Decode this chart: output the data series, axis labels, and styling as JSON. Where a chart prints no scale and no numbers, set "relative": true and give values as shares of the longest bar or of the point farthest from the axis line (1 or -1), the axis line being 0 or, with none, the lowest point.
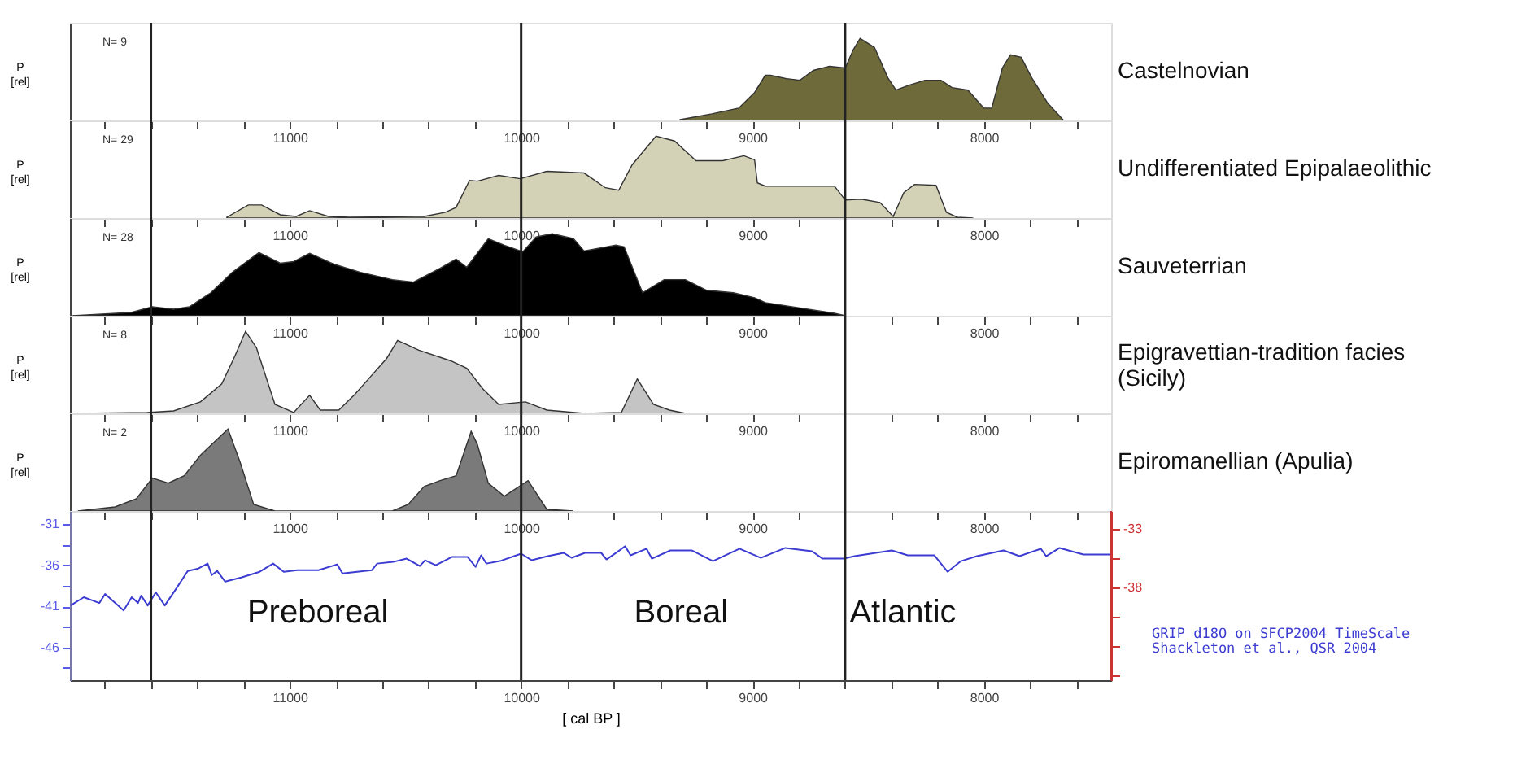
{
  "chart_data": [
    {
      "type": "area",
      "relative": true,
      "title": "Castelnovian",
      "ylabel": "P [rel]",
      "annotations": [
        "N= 9"
      ],
      "tick_labels": "x",
      "xlim": [
        11950,
        7450
      ],
      "xticks": [
        {
          "value": 11800,
          "label": null
        },
        {
          "value": 11600,
          "label": null
        },
        {
          "value": 11400,
          "label": null
        },
        {
          "value": 11200,
          "label": null
        },
        11000,
        {
          "value": 10800,
          "label": null
        },
        {
          "value": 10600,
          "label": null
        },
        {
          "value": 10400,
          "label": null
        },
        {
          "value": 10200,
          "label": null
        },
        10000,
        {
          "value": 9800,
          "label": null
        },
        {
          "value": 9600,
          "label": null
        },
        {
          "value": 9400,
          "label": null
        },
        {
          "value": 9200,
          "label": null
        },
        9000,
        {
          "value": 8800,
          "label": null
        },
        {
          "value": 8600,
          "label": null
        },
        {
          "value": 8400,
          "label": null
        },
        {
          "value": 8200,
          "label": null
        },
        8000,
        {
          "value": 7800,
          "label": null
        },
        {
          "value": 7600,
          "label": null
        }
      ],
      "ref_lines": [
        {
          "axis": "x",
          "value": 11600,
          "color": "#222222"
        },
        {
          "axis": "x",
          "value": 10000,
          "color": "#222222"
        },
        {
          "axis": "x",
          "value": 8600,
          "color": "#222222"
        }
      ],
      "x": [
        9313,
        9175,
        9060,
        8991,
        8945,
        8922,
        8853,
        8795,
        8737,
        8668,
        8599,
        8565,
        8535,
        8473,
        8415,
        8380,
        8323,
        8254,
        8185,
        8138,
        8069,
        8000,
        7966,
        7920,
        7885,
        7839,
        7793,
        7724,
        7655
      ],
      "series": [
        {
          "color": "#6e6a3a",
          "values": [
            0.01,
            0.08,
            0.15,
            0.34,
            0.55,
            0.55,
            0.51,
            0.49,
            0.61,
            0.66,
            0.64,
            0.86,
            1.0,
            0.89,
            0.52,
            0.37,
            0.43,
            0.49,
            0.49,
            0.4,
            0.37,
            0.15,
            0.15,
            0.64,
            0.8,
            0.77,
            0.52,
            0.21,
            0
          ]
        }
      ]
    },
    {
      "type": "area",
      "relative": true,
      "title": "Undifferentiated Epipalaeolithic",
      "ylabel": "P [rel]",
      "annotations": [
        "N= 29"
      ],
      "tick_labels": "x",
      "xlim": [
        11950,
        7450
      ],
      "xticks": [
        {
          "value": 11800,
          "label": null
        },
        {
          "value": 11600,
          "label": null
        },
        {
          "value": 11400,
          "label": null
        },
        {
          "value": 11200,
          "label": null
        },
        11000,
        {
          "value": 10800,
          "label": null
        },
        {
          "value": 10600,
          "label": null
        },
        {
          "value": 10400,
          "label": null
        },
        {
          "value": 10200,
          "label": null
        },
        10000,
        {
          "value": 9800,
          "label": null
        },
        {
          "value": 9600,
          "label": null
        },
        {
          "value": 9400,
          "label": null
        },
        {
          "value": 9200,
          "label": null
        },
        9000,
        {
          "value": 8800,
          "label": null
        },
        {
          "value": 8600,
          "label": null
        },
        {
          "value": 8400,
          "label": null
        },
        {
          "value": 8200,
          "label": null
        },
        8000,
        {
          "value": 7800,
          "label": null
        },
        {
          "value": 7600,
          "label": null
        }
      ],
      "ref_lines": [
        {
          "axis": "x",
          "value": 11600,
          "color": "#222222"
        },
        {
          "axis": "x",
          "value": 10000,
          "color": "#222222"
        },
        {
          "axis": "x",
          "value": 8600,
          "color": "#222222"
        }
      ],
      "x": [
        11272,
        11179,
        11122,
        11041,
        10972,
        10914,
        10833,
        10742,
        10419,
        10327,
        10281,
        10223,
        10189,
        10097,
        10004,
        9889,
        9728,
        9636,
        9578,
        9520,
        9417,
        9337,
        9244,
        9129,
        9037,
        8991,
        8979,
        8945,
        8784,
        8646,
        8599,
        8530,
        8449,
        8392,
        8346,
        8300,
        8207,
        8162,
        8115,
        8046
      ],
      "series": [
        {
          "color": "#d3d1b6",
          "values": [
            0.01,
            0.16,
            0.16,
            0.04,
            0.02,
            0.09,
            0.02,
            0.01,
            0.02,
            0.07,
            0.13,
            0.46,
            0.45,
            0.52,
            0.48,
            0.57,
            0.55,
            0.37,
            0.34,
            0.65,
            1.0,
            0.94,
            0.7,
            0.7,
            0.76,
            0.71,
            0.43,
            0.39,
            0.39,
            0.39,
            0.22,
            0.23,
            0.19,
            0.02,
            0.31,
            0.41,
            0.4,
            0.07,
            0.01,
            0
          ]
        }
      ]
    },
    {
      "type": "area",
      "relative": true,
      "title": "Sauveterrian",
      "ylabel": "P [rel]",
      "annotations": [
        "N= 28"
      ],
      "tick_labels": "x",
      "xlim": [
        11950,
        7450
      ],
      "xticks": [
        {
          "value": 11800,
          "label": null
        },
        {
          "value": 11600,
          "label": null
        },
        {
          "value": 11400,
          "label": null
        },
        {
          "value": 11200,
          "label": null
        },
        11000,
        {
          "value": 10800,
          "label": null
        },
        {
          "value": 10600,
          "label": null
        },
        {
          "value": 10400,
          "label": null
        },
        {
          "value": 10200,
          "label": null
        },
        10000,
        {
          "value": 9800,
          "label": null
        },
        {
          "value": 9600,
          "label": null
        },
        {
          "value": 9400,
          "label": null
        },
        {
          "value": 9200,
          "label": null
        },
        9000,
        {
          "value": 8800,
          "label": null
        },
        {
          "value": 8600,
          "label": null
        },
        {
          "value": 8400,
          "label": null
        },
        {
          "value": 8200,
          "label": null
        },
        8000,
        {
          "value": 7800,
          "label": null
        },
        {
          "value": 7600,
          "label": null
        }
      ],
      "ref_lines": [
        {
          "axis": "x",
          "value": 11600,
          "color": "#222222"
        },
        {
          "axis": "x",
          "value": 10000,
          "color": "#222222"
        },
        {
          "axis": "x",
          "value": 8600,
          "color": "#222222"
        }
      ],
      "x": [
        11939,
        11686,
        11594,
        11502,
        11433,
        11341,
        11248,
        11133,
        11041,
        10983,
        10914,
        10811,
        10695,
        10557,
        10465,
        10350,
        10281,
        10235,
        10142,
        10073,
        9993,
        9935,
        9866,
        9774,
        9728,
        9590,
        9555,
        9475,
        9382,
        9290,
        9198,
        9083,
        8991,
        8945,
        8784,
        8646,
        8599
      ],
      "series": [
        {
          "color": "#000000",
          "values": [
            0,
            0.04,
            0.11,
            0.08,
            0.11,
            0.28,
            0.53,
            0.77,
            0.64,
            0.66,
            0.76,
            0.63,
            0.53,
            0.44,
            0.41,
            0.58,
            0.69,
            0.59,
            0.94,
            0.86,
            0.78,
            0.96,
            1.0,
            0.94,
            0.79,
            0.86,
            0.84,
            0.28,
            0.44,
            0.44,
            0.31,
            0.28,
            0.22,
            0.16,
            0.09,
            0.03,
            0
          ]
        }
      ]
    },
    {
      "type": "area",
      "relative": true,
      "title": "Epigravettian-tradition facies\n(Sicily)",
      "ylabel": "P [rel]",
      "annotations": [
        "N= 8"
      ],
      "tick_labels": "x",
      "xlim": [
        11950,
        7450
      ],
      "xticks": [
        {
          "value": 11800,
          "label": null
        },
        {
          "value": 11600,
          "label": null
        },
        {
          "value": 11400,
          "label": null
        },
        {
          "value": 11200,
          "label": null
        },
        11000,
        {
          "value": 10800,
          "label": null
        },
        {
          "value": 10600,
          "label": null
        },
        {
          "value": 10400,
          "label": null
        },
        {
          "value": 10200,
          "label": null
        },
        10000,
        {
          "value": 9800,
          "label": null
        },
        {
          "value": 9600,
          "label": null
        },
        {
          "value": 9400,
          "label": null
        },
        {
          "value": 9200,
          "label": null
        },
        9000,
        {
          "value": 8800,
          "label": null
        },
        {
          "value": 8600,
          "label": null
        },
        {
          "value": 8400,
          "label": null
        },
        {
          "value": 8200,
          "label": null
        },
        8000,
        {
          "value": 7800,
          "label": null
        },
        {
          "value": 7600,
          "label": null
        }
      ],
      "ref_lines": [
        {
          "axis": "x",
          "value": 11600,
          "color": "#222222"
        },
        {
          "axis": "x",
          "value": 10000,
          "color": "#222222"
        },
        {
          "axis": "x",
          "value": 8600,
          "color": "#222222"
        }
      ],
      "x": [
        11916,
        11617,
        11502,
        11386,
        11294,
        11237,
        11191,
        11144,
        11064,
        10983,
        10914,
        10868,
        10788,
        10719,
        10650,
        10581,
        10534,
        10442,
        10304,
        10235,
        10166,
        10097,
        9981,
        9889,
        9728,
        9567,
        9498,
        9428,
        9359,
        9290
      ],
      "series": [
        {
          "color": "#c4c4c4",
          "values": [
            0,
            0.01,
            0.03,
            0.14,
            0.36,
            0.7,
            1.0,
            0.8,
            0.11,
            0.01,
            0.22,
            0.04,
            0.04,
            0.23,
            0.45,
            0.67,
            0.89,
            0.77,
            0.64,
            0.55,
            0.3,
            0.11,
            0.14,
            0.04,
            0,
            0.01,
            0.42,
            0.11,
            0.04,
            0
          ]
        }
      ]
    },
    {
      "type": "area",
      "relative": true,
      "title": "Epiromanellian (Apulia)",
      "ylabel": "P [rel]",
      "annotations": [
        "N= 2"
      ],
      "tick_labels": "x",
      "xlim": [
        11950,
        7450
      ],
      "xticks": [
        {
          "value": 11800,
          "label": null
        },
        {
          "value": 11600,
          "label": null
        },
        {
          "value": 11400,
          "label": null
        },
        {
          "value": 11200,
          "label": null
        },
        11000,
        {
          "value": 10800,
          "label": null
        },
        {
          "value": 10600,
          "label": null
        },
        {
          "value": 10400,
          "label": null
        },
        {
          "value": 10200,
          "label": null
        },
        10000,
        {
          "value": 9800,
          "label": null
        },
        {
          "value": 9600,
          "label": null
        },
        {
          "value": 9400,
          "label": null
        },
        {
          "value": 9200,
          "label": null
        },
        9000,
        {
          "value": 8800,
          "label": null
        },
        {
          "value": 8600,
          "label": null
        },
        {
          "value": 8400,
          "label": null
        },
        {
          "value": 8200,
          "label": null
        },
        8000,
        {
          "value": 7800,
          "label": null
        },
        {
          "value": 7600,
          "label": null
        }
      ],
      "ref_lines": [
        {
          "axis": "x",
          "value": 11600,
          "color": "#222222"
        },
        {
          "axis": "x",
          "value": 10000,
          "color": "#222222"
        },
        {
          "axis": "x",
          "value": 8600,
          "color": "#222222"
        }
      ],
      "x": [
        11916,
        11755,
        11663,
        11594,
        11525,
        11456,
        11386,
        11267,
        11214,
        11156,
        11064,
        10557,
        10488,
        10419,
        10350,
        10281,
        10216,
        10189,
        10142,
        10073,
        9970,
        9889,
        9774
      ],
      "series": [
        {
          "color": "#7a7a7a",
          "values": [
            0,
            0.05,
            0.15,
            0.4,
            0.34,
            0.43,
            0.68,
            1.0,
            0.59,
            0.08,
            0,
            0,
            0.08,
            0.3,
            0.37,
            0.43,
            0.97,
            0.81,
            0.34,
            0.18,
            0.37,
            0.02,
            0
          ]
        }
      ]
    },
    {
      "type": "line",
      "xlabel": "[ cal BP ]",
      "xlim": [
        11950,
        7450
      ],
      "xticks": [
        {
          "value": 11800,
          "label": null
        },
        {
          "value": 11600,
          "label": null
        },
        {
          "value": 11400,
          "label": null
        },
        {
          "value": 11200,
          "label": null
        },
        11000,
        {
          "value": 10800,
          "label": null
        },
        {
          "value": 10600,
          "label": null
        },
        {
          "value": 10400,
          "label": null
        },
        {
          "value": 10200,
          "label": null
        },
        10000,
        {
          "value": 9800,
          "label": null
        },
        {
          "value": 9600,
          "label": null
        },
        {
          "value": 9400,
          "label": null
        },
        {
          "value": 9200,
          "label": null
        },
        9000,
        {
          "value": 8800,
          "label": null
        },
        {
          "value": 8600,
          "label": null
        },
        {
          "value": 8400,
          "label": null
        },
        {
          "value": 8200,
          "label": null
        },
        8000,
        {
          "value": 7800,
          "label": null
        },
        {
          "value": 7600,
          "label": null
        }
      ],
      "ylim": [
        -50,
        -29.4
      ],
      "yticks": [
        -31,
        {
          "value": -33.5,
          "label": null
        },
        -36,
        {
          "value": -38.5,
          "label": null
        },
        -41,
        {
          "value": -43.5,
          "label": null
        },
        -46,
        {
          "value": -48.5,
          "label": null
        }
      ],
      "y2lim": [
        -45.9,
        -31.5
      ],
      "y2ticks": [
        -33,
        {
          "value": -35.5,
          "label": null
        },
        -38,
        {
          "value": -40.5,
          "label": null
        },
        {
          "value": -43,
          "label": null
        },
        {
          "value": -45.5,
          "label": null
        }
      ],
      "ref_lines": [
        {
          "axis": "x",
          "value": 11600,
          "color": "#222222"
        },
        {
          "axis": "x",
          "value": 10000,
          "color": "#222222"
        },
        {
          "axis": "x",
          "value": 8600,
          "color": "#222222"
        }
      ],
      "annotations": [
        "Preboreal",
        "Boreal",
        "Atlantic",
        "GRIP d18O on SFCP2004 TimeScale",
        "Shackleton et al., QSR 2004"
      ],
      "x": [
        11947,
        11890,
        11823,
        11798,
        11718,
        11683,
        11656,
        11642,
        11614,
        11579,
        11540,
        11487,
        11441,
        11395,
        11355,
        11337,
        11314,
        11279,
        11210,
        11130,
        11072,
        11026,
        10968,
        10876,
        10795,
        10772,
        10645,
        10622,
        10553,
        10495,
        10438,
        10415,
        10369,
        10300,
        10231,
        10197,
        10173,
        10150,
        10092,
        10000,
        9954,
        9885,
        9816,
        9781,
        9724,
        9654,
        9631,
        9550,
        9527,
        9458,
        9435,
        9355,
        9263,
        9171,
        9056,
        8964,
        8858,
        8743,
        8697,
        8605,
        8559,
        8398,
        8329,
        8214,
        8157,
        8099,
        8030,
        7915,
        7846,
        7754,
        7731,
        7673,
        7570,
        7450
      ],
      "series": [
        {
          "color": "#3c3cd2",
          "line_style": "solid",
          "values": [
            -40.9,
            -39.9,
            -40.6,
            -39.5,
            -41.5,
            -39.9,
            -40.6,
            -39.7,
            -40.9,
            -39.3,
            -40.9,
            -38.7,
            -36.7,
            -36.4,
            -35.8,
            -37.2,
            -36.7,
            -38,
            -37.5,
            -36.8,
            -35.8,
            -36.8,
            -36.6,
            -36.6,
            -35.9,
            -37,
            -36.6,
            -35.8,
            -35.6,
            -35.2,
            -36.1,
            -35.4,
            -36,
            -35,
            -35,
            -36.2,
            -34.8,
            -35.8,
            -35.5,
            -34.6,
            -35.4,
            -34.9,
            -34.5,
            -35.1,
            -34.5,
            -34.5,
            -35.3,
            -33.7,
            -34.8,
            -34,
            -35.2,
            -34.2,
            -34.2,
            -35.5,
            -34,
            -35.1,
            -33.9,
            -34.3,
            -35.2,
            -35.2,
            -34.9,
            -34.2,
            -34.8,
            -34.8,
            -36.8,
            -35.5,
            -34.9,
            -34.2,
            -34.9,
            -34,
            -34.9,
            -33.9,
            -34.7,
            -34.7
          ]
        }
      ]
    }
  ]
}
